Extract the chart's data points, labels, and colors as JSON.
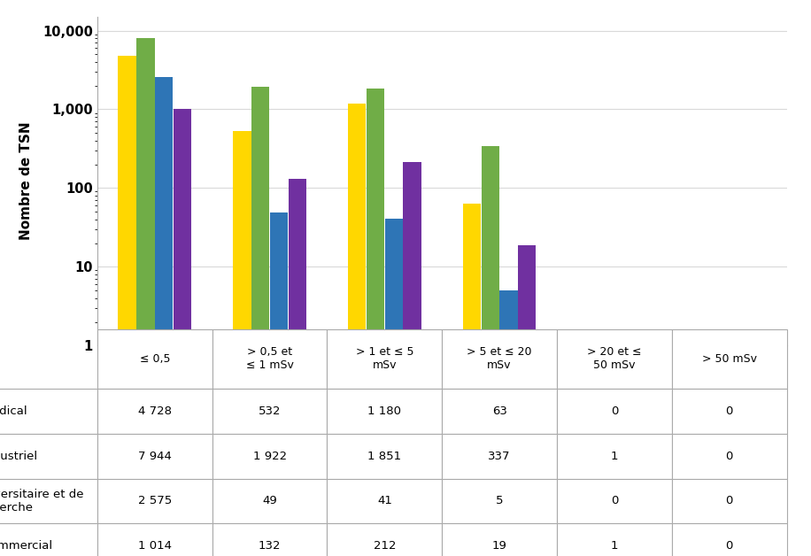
{
  "categories": [
    "≤ 0,5",
    "> 0,5 et\n≤ 1 mSv",
    "> 1 et ≤ 5\nmSv",
    "> 5 et ≤ 20\nmSv",
    "> 20 et ≤\n50 mSv",
    "> 50 mSv"
  ],
  "series": [
    {
      "name": "Médical",
      "color": "#FFD700",
      "values": [
        4728,
        532,
        1180,
        63,
        0,
        0
      ]
    },
    {
      "name": "Industriel",
      "color": "#70AD47",
      "values": [
        7944,
        1922,
        1851,
        337,
        1,
        0
      ]
    },
    {
      "name": "Universitaire et de\nrecherche",
      "color": "#2E75B6",
      "values": [
        2575,
        49,
        41,
        5,
        0,
        0
      ]
    },
    {
      "name": "Commercial",
      "color": "#7030A0",
      "values": [
        1014,
        132,
        212,
        19,
        1,
        0
      ]
    }
  ],
  "ylabel": "Nombre de TSN",
  "ylim_log": [
    1,
    15000
  ],
  "yticks": [
    1,
    10,
    100,
    1000,
    10000
  ],
  "ytick_labels": [
    "1",
    "10",
    "100",
    "1,000",
    "10,000"
  ],
  "bar_width": 0.16,
  "table_data": [
    [
      "4 728",
      "532",
      "1 180",
      "63",
      "0",
      "0"
    ],
    [
      "7 944",
      "1 922",
      "1 851",
      "337",
      "1",
      "0"
    ],
    [
      "2 575",
      "49",
      "41",
      "5",
      "0",
      "0"
    ],
    [
      "1 014",
      "132",
      "212",
      "19",
      "1",
      "0"
    ]
  ],
  "row_labels": [
    "Médical",
    "Industriel",
    "Universitaire et de\nrecherche",
    "Commercial"
  ],
  "row_colors": [
    "#FFD700",
    "#70AD47",
    "#2E75B6",
    "#7030A0"
  ],
  "background_color": "#FFFFFF",
  "grid_color": "#D9D9D9",
  "spine_color": "#AAAAAA"
}
